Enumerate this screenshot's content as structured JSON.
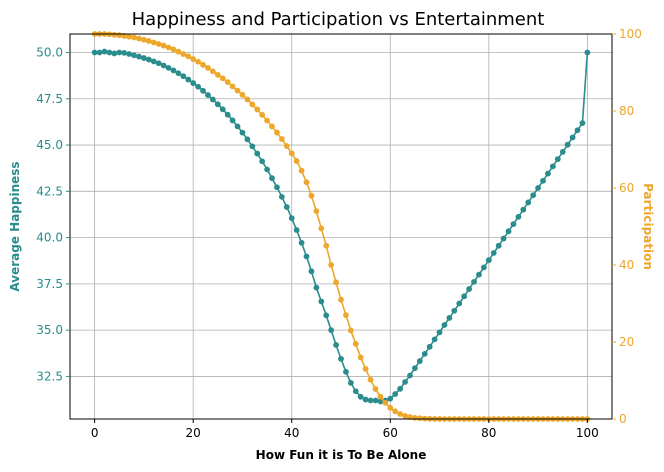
{
  "chart_data": {
    "type": "line",
    "title": "Happiness and Participation vs Entertainment",
    "xlabel": "How Fun it is To Be Alone",
    "ylabel_left": "Average Happiness",
    "ylabel_right": "Participation",
    "xlim": [
      -5,
      105
    ],
    "ylim_left": [
      30.2,
      51.0
    ],
    "ylim_right": [
      0,
      100
    ],
    "x_ticks": [
      0,
      20,
      40,
      60,
      80,
      100
    ],
    "y_left_ticks": [
      32.5,
      35.0,
      37.5,
      40.0,
      42.5,
      45.0,
      47.5,
      50.0
    ],
    "y_right_ticks": [
      0,
      20,
      40,
      60,
      80,
      100
    ],
    "grid": true,
    "colors": {
      "happiness": "#2a8c8c",
      "participation": "#eca72c"
    },
    "series": [
      {
        "name": "Average Happiness",
        "axis": "left",
        "x": [
          0,
          1,
          2,
          3,
          4,
          5,
          6,
          7,
          8,
          9,
          10,
          11,
          12,
          13,
          14,
          15,
          16,
          17,
          18,
          19,
          20,
          21,
          22,
          23,
          24,
          25,
          26,
          27,
          28,
          29,
          30,
          31,
          32,
          33,
          34,
          35,
          36,
          37,
          38,
          39,
          40,
          41,
          42,
          43,
          44,
          45,
          46,
          47,
          48,
          49,
          50,
          51,
          52,
          53,
          54,
          55,
          56,
          57,
          58,
          59,
          60,
          61,
          62,
          63,
          64,
          65,
          66,
          67,
          68,
          69,
          70,
          71,
          72,
          73,
          74,
          75,
          76,
          77,
          78,
          79,
          80,
          81,
          82,
          83,
          84,
          85,
          86,
          87,
          88,
          89,
          90,
          91,
          92,
          93,
          94,
          95,
          96,
          97,
          98,
          99,
          100
        ],
        "values": [
          50.0,
          50.0,
          50.05,
          50.0,
          49.95,
          50.0,
          49.98,
          49.92,
          49.85,
          49.78,
          49.7,
          49.62,
          49.52,
          49.42,
          49.3,
          49.17,
          49.03,
          48.88,
          48.72,
          48.54,
          48.35,
          48.15,
          47.93,
          47.7,
          47.46,
          47.2,
          46.93,
          46.64,
          46.33,
          46.01,
          45.67,
          45.31,
          44.93,
          44.54,
          44.12,
          43.68,
          43.21,
          42.72,
          42.2,
          41.65,
          41.05,
          40.41,
          39.72,
          38.98,
          38.18,
          37.3,
          36.55,
          35.8,
          35.0,
          34.2,
          33.45,
          32.75,
          32.15,
          31.7,
          31.4,
          31.25,
          31.2,
          31.2,
          31.15,
          31.2,
          31.3,
          31.55,
          31.83,
          32.2,
          32.55,
          32.95,
          33.33,
          33.72,
          34.1,
          34.5,
          34.88,
          35.28,
          35.66,
          36.05,
          36.44,
          36.83,
          37.22,
          37.61,
          38.0,
          38.39,
          38.78,
          39.17,
          39.56,
          39.95,
          40.34,
          40.73,
          41.12,
          41.51,
          41.9,
          42.29,
          42.68,
          43.07,
          43.46,
          43.85,
          44.24,
          44.63,
          45.02,
          45.41,
          45.8,
          46.19,
          50.0
        ]
      },
      {
        "name": "Participation",
        "axis": "right",
        "x": [
          0,
          1,
          2,
          3,
          4,
          5,
          6,
          7,
          8,
          9,
          10,
          11,
          12,
          13,
          14,
          15,
          16,
          17,
          18,
          19,
          20,
          21,
          22,
          23,
          24,
          25,
          26,
          27,
          28,
          29,
          30,
          31,
          32,
          33,
          34,
          35,
          36,
          37,
          38,
          39,
          40,
          41,
          42,
          43,
          44,
          45,
          46,
          47,
          48,
          49,
          50,
          51,
          52,
          53,
          54,
          55,
          56,
          57,
          58,
          59,
          60,
          61,
          62,
          63,
          64,
          65,
          66,
          67,
          68,
          69,
          70,
          71,
          72,
          73,
          74,
          75,
          76,
          77,
          78,
          79,
          80,
          81,
          82,
          83,
          84,
          85,
          86,
          87,
          88,
          89,
          90,
          91,
          92,
          93,
          94,
          95,
          96,
          97,
          98,
          99,
          100
        ],
        "values": [
          100,
          100,
          100,
          99.9,
          99.8,
          99.7,
          99.5,
          99.3,
          99.1,
          98.8,
          98.5,
          98.2,
          97.8,
          97.4,
          97.0,
          96.5,
          96.0,
          95.4,
          94.8,
          94.2,
          93.5,
          92.8,
          92.0,
          91.2,
          90.3,
          89.4,
          88.5,
          87.5,
          86.4,
          85.3,
          84.2,
          83.0,
          81.7,
          80.4,
          79.0,
          77.5,
          76.0,
          74.4,
          72.7,
          70.9,
          69.0,
          67.0,
          64.5,
          61.5,
          58.0,
          54.0,
          49.5,
          45.0,
          40.0,
          35.5,
          31.0,
          27.0,
          23.0,
          19.5,
          16.0,
          13.0,
          10.2,
          7.8,
          5.8,
          4.2,
          2.9,
          2.0,
          1.3,
          0.8,
          0.5,
          0.3,
          0.2,
          0.1,
          0.05,
          0.02,
          0.01,
          0,
          0,
          0,
          0,
          0,
          0,
          0,
          0,
          0,
          0,
          0,
          0,
          0,
          0,
          0,
          0,
          0,
          0,
          0,
          0,
          0,
          0,
          0,
          0,
          0,
          0,
          0,
          0,
          0,
          0
        ]
      }
    ]
  }
}
